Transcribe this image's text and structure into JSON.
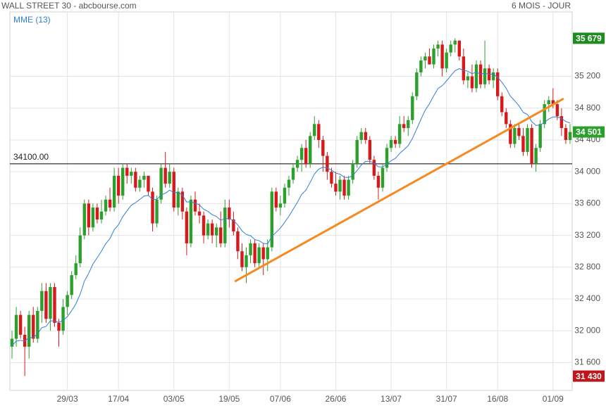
{
  "header": {
    "title": "WALL STREET 30 - abcbourse.com",
    "period": "6 MOIS - JOUR"
  },
  "chart_data": {
    "type": "candlestick",
    "categories": [
      null,
      null,
      null,
      null,
      null,
      null,
      null,
      null,
      null,
      null,
      null,
      null,
      null,
      "29/03",
      null,
      null,
      null,
      null,
      null,
      null,
      null,
      null,
      null,
      null,
      null,
      "17/04",
      null,
      null,
      null,
      null,
      null,
      null,
      null,
      null,
      null,
      null,
      null,
      null,
      "03/05",
      null,
      null,
      null,
      null,
      null,
      null,
      null,
      null,
      null,
      null,
      null,
      null,
      "19/05",
      null,
      null,
      null,
      null,
      null,
      null,
      null,
      null,
      null,
      null,
      null,
      "07/06",
      null,
      null,
      null,
      null,
      null,
      null,
      null,
      null,
      null,
      null,
      null,
      null,
      "26/06",
      null,
      null,
      null,
      null,
      null,
      null,
      null,
      null,
      null,
      null,
      null,
      null,
      "13/07",
      null,
      null,
      null,
      null,
      null,
      null,
      null,
      null,
      null,
      null,
      null,
      null,
      "31/07",
      null,
      null,
      null,
      null,
      null,
      null,
      null,
      null,
      null,
      null,
      null,
      "16/08",
      null,
      null,
      null,
      null,
      null,
      null,
      null,
      null,
      null,
      null,
      null,
      null,
      "01/09",
      null,
      null,
      null,
      null
    ],
    "open": [
      31800,
      31900,
      32200,
      31950,
      31800,
      32200,
      31900,
      32250,
      32500,
      32150,
      32550,
      32100,
      32000,
      32300,
      32450,
      32700,
      32850,
      33200,
      33600,
      33300,
      33550,
      33400,
      33500,
      33650,
      33550,
      33950,
      33700,
      34050,
      33950,
      34000,
      33800,
      33900,
      33950,
      33750,
      33350,
      33650,
      34050,
      33850,
      34000,
      33550,
      33750,
      33500,
      33100,
      33650,
      33500,
      33450,
      33200,
      33350,
      33200,
      33300,
      33100,
      33550,
      33400,
      33250,
      33000,
      32800,
      32950,
      33100,
      32850,
      33050,
      32900,
      33050,
      33750,
      33550,
      33600,
      33800,
      33900,
      34050,
      34150,
      34300,
      34100,
      34450,
      34600,
      34400,
      34200,
      34000,
      33850,
      33750,
      33900,
      33700,
      33900,
      34100,
      34400,
      34500,
      34400,
      34150,
      33950,
      33800,
      34050,
      34300,
      34400,
      34350,
      34600,
      34550,
      34650,
      34950,
      35250,
      35400,
      35450,
      35350,
      35550,
      35600,
      35300,
      35500,
      35600,
      35650,
      35450,
      35150,
      35200,
      35050,
      35350,
      35100,
      35300,
      35150,
      35250,
      34950,
      34750,
      34600,
      34350,
      34550,
      34450,
      34250,
      34550,
      34100,
      34300,
      34600,
      34850,
      34900,
      34850,
      34700,
      34550,
      34400
    ],
    "high": [
      32000,
      32300,
      32250,
      32050,
      32250,
      32300,
      32300,
      32600,
      32600,
      32600,
      32600,
      32150,
      32400,
      32500,
      32750,
      32950,
      33300,
      33650,
      33650,
      33600,
      33600,
      33650,
      33700,
      33800,
      34050,
      34050,
      34100,
      34100,
      34050,
      34050,
      33950,
      34000,
      33950,
      33800,
      33700,
      34100,
      34250,
      34100,
      34050,
      33800,
      33800,
      33550,
      33700,
      33750,
      33600,
      33500,
      33400,
      33400,
      33350,
      33500,
      33650,
      33650,
      33500,
      33300,
      33100,
      33050,
      33150,
      33150,
      33100,
      33100,
      33150,
      33800,
      33800,
      33700,
      33850,
      33950,
      34100,
      34200,
      34350,
      34400,
      34500,
      34700,
      34650,
      34450,
      34250,
      34050,
      34000,
      33950,
      33950,
      33950,
      34150,
      34450,
      34550,
      34550,
      34450,
      34200,
      34000,
      34100,
      34350,
      34450,
      34450,
      34700,
      34700,
      34700,
      35000,
      35300,
      35450,
      35500,
      35550,
      35600,
      35650,
      35650,
      35550,
      35650,
      35679,
      35650,
      35550,
      35250,
      35350,
      35400,
      35400,
      35650,
      35350,
      35300,
      35300,
      35000,
      34800,
      34650,
      34600,
      34600,
      34550,
      34600,
      34600,
      34350,
      34650,
      34900,
      34950,
      35050,
      34900,
      34800,
      34600,
      34600
    ],
    "low": [
      31650,
      31800,
      31900,
      31430,
      31650,
      31850,
      31850,
      32100,
      32100,
      32000,
      32050,
      31800,
      31950,
      32200,
      32400,
      32650,
      32800,
      33150,
      33200,
      33250,
      33350,
      33350,
      33450,
      33500,
      33500,
      33600,
      33650,
      33850,
      33850,
      33750,
      33750,
      33800,
      33700,
      33250,
      33300,
      33600,
      33800,
      33800,
      33500,
      33450,
      33400,
      32950,
      33050,
      33450,
      33350,
      33100,
      33150,
      33100,
      33050,
      33050,
      33050,
      33300,
      33200,
      32900,
      32750,
      32600,
      32850,
      32800,
      32800,
      32700,
      32750,
      33000,
      33500,
      33450,
      33550,
      33700,
      33850,
      34000,
      34000,
      34050,
      34050,
      34400,
      34300,
      34000,
      33900,
      33800,
      33700,
      33650,
      33650,
      33650,
      33850,
      34050,
      34350,
      34350,
      34100,
      33900,
      33650,
      33750,
      34000,
      34250,
      34300,
      34300,
      34500,
      34450,
      34600,
      34900,
      35200,
      35300,
      35350,
      35300,
      35450,
      35200,
      35250,
      35450,
      35500,
      35400,
      35100,
      35050,
      35000,
      35000,
      35050,
      35050,
      35100,
      35050,
      34900,
      34700,
      34550,
      34300,
      34300,
      34400,
      34200,
      34200,
      34050,
      34000,
      34250,
      34550,
      34750,
      34800,
      34650,
      34450,
      34350,
      34350
    ],
    "close": [
      31900,
      32200,
      31950,
      31800,
      32200,
      31900,
      32250,
      32500,
      32150,
      32550,
      32100,
      32000,
      32300,
      32450,
      32700,
      32850,
      33200,
      33600,
      33300,
      33550,
      33400,
      33500,
      33650,
      33550,
      33950,
      33700,
      34050,
      33950,
      34000,
      33800,
      33900,
      33950,
      33750,
      33350,
      33650,
      34050,
      33850,
      34000,
      33550,
      33750,
      33500,
      33100,
      33650,
      33500,
      33450,
      33200,
      33350,
      33200,
      33300,
      33100,
      33550,
      33400,
      33250,
      33000,
      32800,
      32950,
      33100,
      32850,
      33050,
      32900,
      33050,
      33750,
      33550,
      33600,
      33800,
      33900,
      34050,
      34150,
      34300,
      34100,
      34450,
      34600,
      34400,
      34200,
      34000,
      33850,
      33750,
      33900,
      33700,
      33900,
      34100,
      34400,
      34500,
      34400,
      34150,
      33950,
      33800,
      34050,
      34300,
      34400,
      34350,
      34600,
      34550,
      34650,
      34950,
      35250,
      35400,
      35450,
      35350,
      35550,
      35600,
      35300,
      35500,
      35600,
      35650,
      35450,
      35150,
      35200,
      35050,
      35350,
      35100,
      35300,
      35150,
      35250,
      34950,
      34750,
      34600,
      34350,
      34550,
      34450,
      34250,
      34550,
      34100,
      34300,
      34600,
      34850,
      34900,
      34850,
      34700,
      34550,
      34400,
      34501
    ],
    "up_color": "#2ca02c",
    "down_color": "#d7191c",
    "series": [
      {
        "name": "MME (13)",
        "color": "#2f7fd6",
        "values": [
          31814,
          31869,
          31881,
          31869,
          31916,
          31914,
          31962,
          32039,
          32055,
          32126,
          32122,
          32105,
          32133,
          32178,
          32253,
          32338,
          32461,
          32624,
          32721,
          32839,
          32919,
          33002,
          33095,
          33160,
          33273,
          33334,
          33436,
          33509,
          33579,
          33611,
          33652,
          33695,
          33703,
          33653,
          33653,
          33710,
          33730,
          33769,
          33738,
          33740,
          33706,
          33619,
          33623,
          33605,
          33583,
          33528,
          33503,
          33460,
          33437,
          33389,
          33412,
          33410,
          33387,
          33332,
          33256,
          33212,
          33196,
          33147,
          33133,
          33100,
          33093,
          33187,
          33239,
          33291,
          33364,
          33441,
          33528,
          33617,
          33715,
          33770,
          33867,
          33972,
          34033,
          34057,
          34049,
          34021,
          33982,
          33970,
          33931,
          33927,
          33952,
          34016,
          34085,
          34130,
          34133,
          34107,
          34063,
          34061,
          34095,
          34139,
          34169,
          34231,
          34277,
          34330,
          34419,
          34538,
          34661,
          34774,
          34856,
          34955,
          35047,
          35083,
          35143,
          35208,
          35271,
          35297,
          35276,
          35265,
          35234,
          35251,
          35229,
          35239,
          35226,
          35229,
          35189,
          35126,
          35051,
          34951,
          34894,
          34831,
          34748,
          34720,
          34631,
          34584,
          34586,
          34624,
          34663,
          34690,
          34691,
          34671,
          34632,
          34613
        ]
      }
    ],
    "ylim": [
      31250,
      36010
    ],
    "yticks": [
      {
        "value": 31600,
        "label": "31 600"
      },
      {
        "value": 32000,
        "label": "32 000"
      },
      {
        "value": 32400,
        "label": "32 400"
      },
      {
        "value": 32800,
        "label": "32 800"
      },
      {
        "value": 33200,
        "label": "33 200"
      },
      {
        "value": 33600,
        "label": "33 600"
      },
      {
        "value": 34000,
        "label": "34 000"
      },
      {
        "value": 34400,
        "label": "34 400"
      },
      {
        "value": 34800,
        "label": "34 800"
      },
      {
        "value": 35200,
        "label": "35 200"
      }
    ],
    "grid": true,
    "reference_line": {
      "value": 34100,
      "label": "34100.00",
      "color": "#000000"
    },
    "trendline": {
      "x": [
        52.3,
        129.5
      ],
      "values": [
        32620,
        34920
      ],
      "color": "#f58a1f"
    },
    "price_tags": [
      {
        "value": 35679,
        "label": "35 679",
        "color": "#1e8c1e"
      },
      {
        "value": 34501,
        "label": "34 501",
        "color": "#2ca02c"
      },
      {
        "value": 31430,
        "label": "31 430",
        "color": "#c0161a"
      }
    ]
  }
}
